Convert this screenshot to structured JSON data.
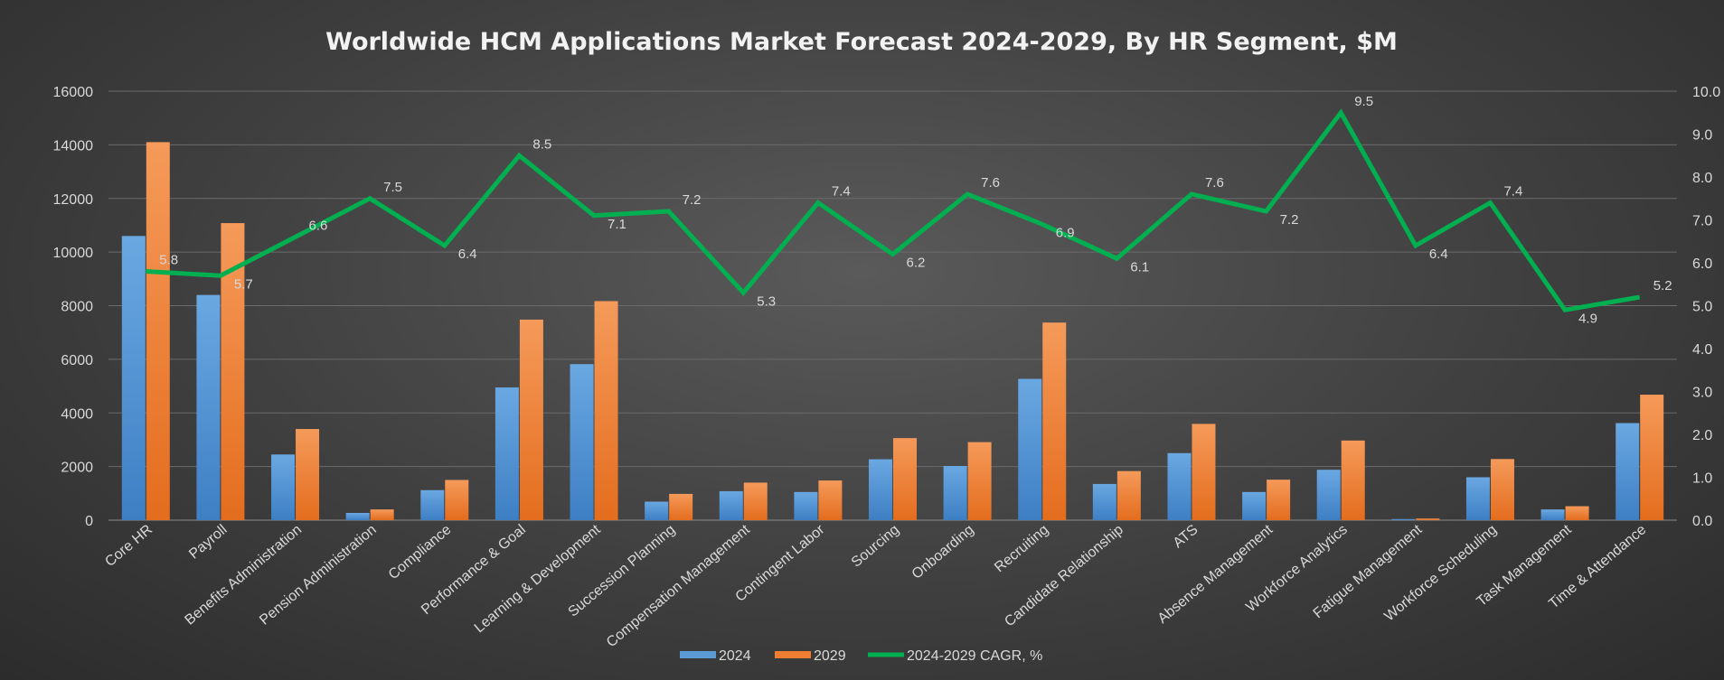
{
  "chart_data": {
    "type": "bar",
    "title": "Worldwide HCM Applications Market Forecast 2024-2029, By HR Segment, $M",
    "categories": [
      "Core HR",
      "Payroll",
      "Benefits Administration",
      "Pension Administration",
      "Compliance",
      "Performance & Goal",
      "Learning & Development",
      "Succession Planning",
      "Compensation Management",
      "Contingent Labor",
      "Sourcing",
      "Onboarding",
      "Recruiting",
      "Candidate Relationship",
      "ATS",
      "Absence Management",
      "Workforce Analytics",
      "Fatigue Management",
      "Workforce Scheduling",
      "Task Management",
      "Time & Attendance"
    ],
    "series": [
      {
        "name": "2024",
        "type": "bar",
        "axis": "left",
        "color": "#5b9bd5",
        "values": [
          10600,
          8400,
          2450,
          270,
          1120,
          4950,
          5820,
          690,
          1080,
          1050,
          2270,
          2020,
          5270,
          1350,
          2500,
          1050,
          1880,
          40,
          1600,
          400,
          3620
        ]
      },
      {
        "name": "2029",
        "type": "bar",
        "axis": "right_none",
        "color": "#ed7d31",
        "values": [
          14100,
          11080,
          3400,
          400,
          1500,
          7480,
          8170,
          980,
          1400,
          1480,
          3060,
          2910,
          7370,
          1830,
          3590,
          1510,
          2970,
          60,
          2280,
          520,
          4680
        ]
      },
      {
        "name": "2024-2029 CAGR, %",
        "type": "line",
        "axis": "right",
        "color": "#00b050",
        "values": [
          5.8,
          5.7,
          6.6,
          7.5,
          6.4,
          8.5,
          7.1,
          7.2,
          5.3,
          7.4,
          6.2,
          7.6,
          6.9,
          6.1,
          7.6,
          7.2,
          9.5,
          6.4,
          7.4,
          4.9,
          5.2
        ]
      }
    ],
    "cagr_labels": [
      "5.8",
      "5.7",
      "6.6",
      "7.5",
      "6.4",
      "8.5",
      "7.1",
      "7.2",
      "5.3",
      "7.4",
      "6.2",
      "7.6",
      "6.9",
      "6.1",
      "7.6",
      "7.2",
      "9.5",
      "6.4",
      "7.4",
      "4.9",
      "5.2"
    ],
    "y_left": {
      "min": 0,
      "max": 16000,
      "ticks": [
        "0",
        "2000",
        "4000",
        "6000",
        "8000",
        "10000",
        "12000",
        "14000",
        "16000"
      ]
    },
    "y_right": {
      "min": 0,
      "max": 10,
      "ticks": [
        "0.0",
        "1.0",
        "2.0",
        "3.0",
        "4.0",
        "5.0",
        "6.0",
        "7.0",
        "8.0",
        "9.0",
        "10.0"
      ]
    },
    "grid": true,
    "legend_position": "bottom",
    "legend": [
      {
        "label": "2024",
        "color": "#5b9bd5"
      },
      {
        "label": "2029",
        "color": "#ed7d31"
      },
      {
        "label": "2024-2029 CAGR, %",
        "color": "#00b050"
      }
    ]
  }
}
